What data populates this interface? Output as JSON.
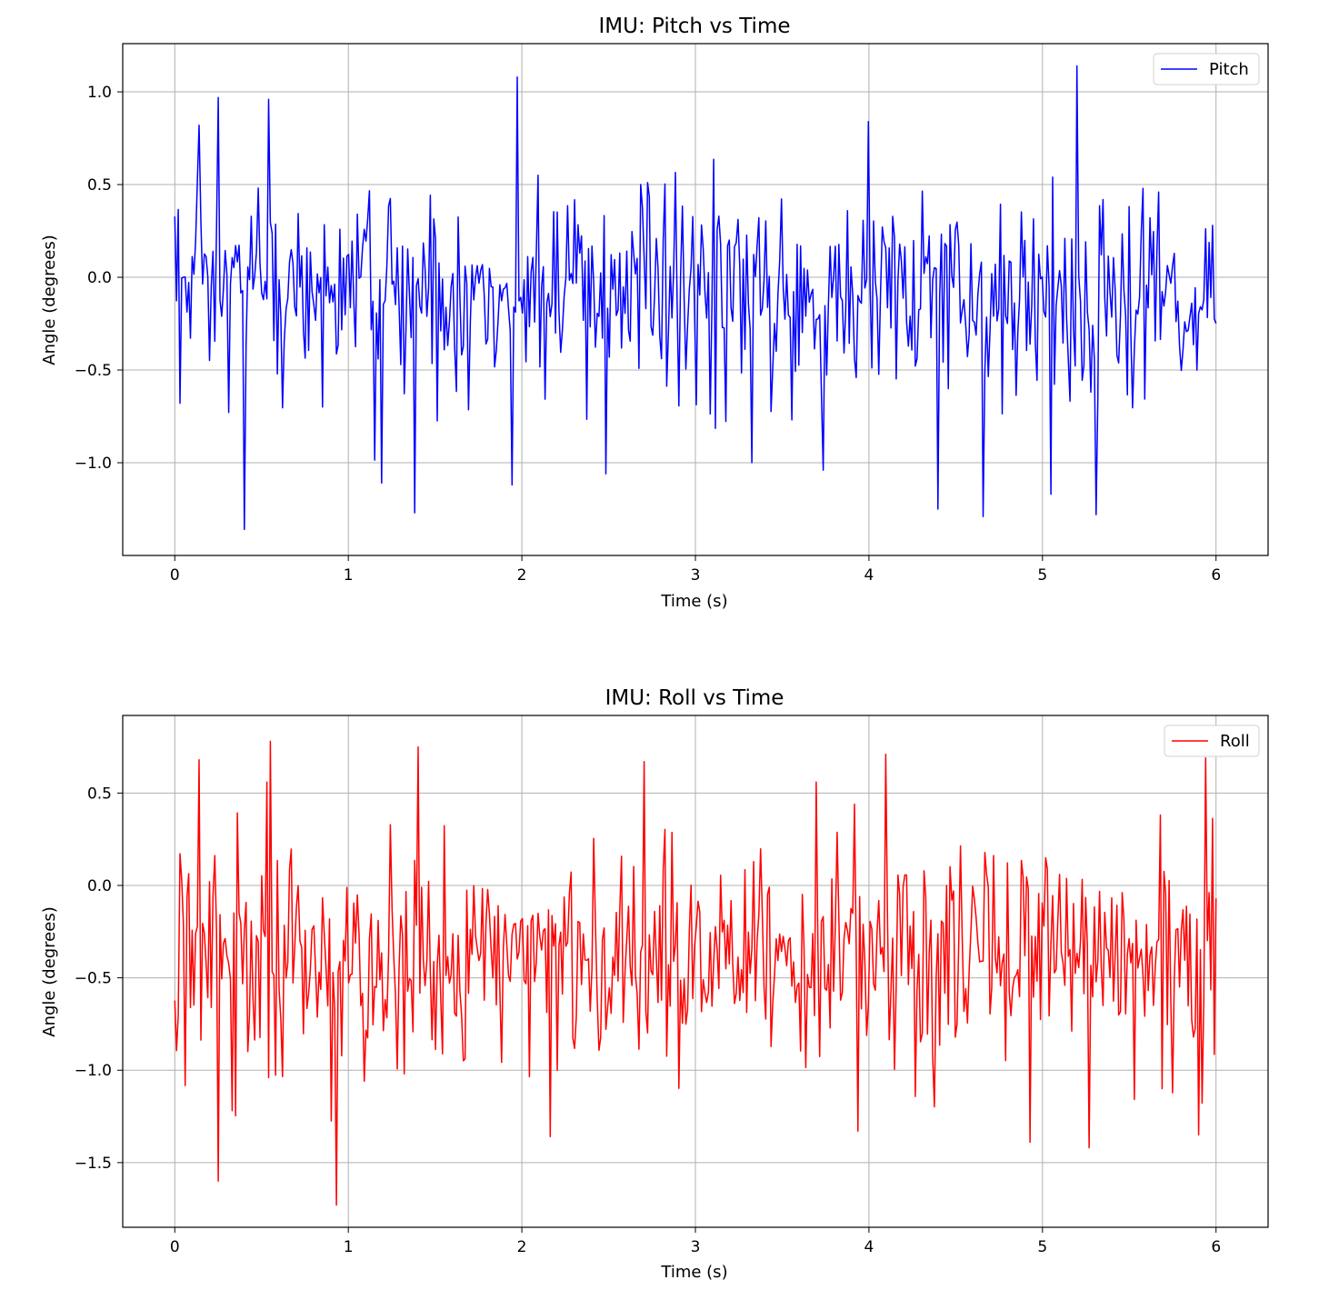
{
  "colors": {
    "pitch": "#0000ff",
    "roll": "#ff0000",
    "grid": "#b0b0b0",
    "axis": "#000000"
  },
  "chart_data": [
    {
      "type": "line",
      "title": "IMU: Pitch vs Time",
      "xlabel": "Time (s)",
      "ylabel": "Angle (degrees)",
      "xlim": [
        -0.3,
        6.3
      ],
      "ylim": [
        -1.5,
        1.26
      ],
      "xticks": [
        0,
        1,
        2,
        3,
        4,
        5,
        6
      ],
      "xtick_labels": [
        "0",
        "1",
        "2",
        "3",
        "4",
        "5",
        "6"
      ],
      "yticks": [
        1.0,
        0.5,
        0.0,
        -0.5,
        -1.0
      ],
      "ytick_labels": [
        "1.0",
        "0.5",
        "0.0",
        "−0.5",
        "−1.0"
      ],
      "grid": true,
      "legend_position": "top-right",
      "series": [
        {
          "name": "Pitch",
          "color": "#0000ff",
          "x_range": [
            0,
            6
          ],
          "sample_count": 600,
          "mean": -0.1,
          "std": 0.3,
          "notable_points": [
            {
              "x": 0.25,
              "y": 0.97
            },
            {
              "x": 0.4,
              "y": -1.36
            },
            {
              "x": 0.54,
              "y": 0.96
            },
            {
              "x": 1.19,
              "y": -1.11
            },
            {
              "x": 1.38,
              "y": -1.27
            },
            {
              "x": 1.97,
              "y": 1.08
            },
            {
              "x": 1.94,
              "y": -1.12
            },
            {
              "x": 2.48,
              "y": -1.06
            },
            {
              "x": 3.33,
              "y": -1.0
            },
            {
              "x": 3.74,
              "y": -1.04
            },
            {
              "x": 4.0,
              "y": 0.84
            },
            {
              "x": 4.4,
              "y": -1.25
            },
            {
              "x": 4.66,
              "y": -1.29
            },
            {
              "x": 5.05,
              "y": -1.17
            },
            {
              "x": 5.2,
              "y": 1.14
            },
            {
              "x": 5.31,
              "y": -1.28
            }
          ]
        }
      ]
    },
    {
      "type": "line",
      "title": "IMU: Roll vs Time",
      "xlabel": "Time (s)",
      "ylabel": "Angle (degrees)",
      "xlim": [
        -0.3,
        6.3
      ],
      "ylim": [
        -1.85,
        0.92
      ],
      "xticks": [
        0,
        1,
        2,
        3,
        4,
        5,
        6
      ],
      "xtick_labels": [
        "0",
        "1",
        "2",
        "3",
        "4",
        "5",
        "6"
      ],
      "yticks": [
        0.5,
        0.0,
        -0.5,
        -1.0,
        -1.5
      ],
      "ytick_labels": [
        "0.5",
        "0.0",
        "−0.5",
        "−1.0",
        "−1.5"
      ],
      "grid": true,
      "legend_position": "top-right",
      "series": [
        {
          "name": "Roll",
          "color": "#ff0000",
          "x_range": [
            0,
            6
          ],
          "sample_count": 600,
          "mean": -0.4,
          "std": 0.3,
          "notable_points": [
            {
              "x": 0.14,
              "y": 0.68
            },
            {
              "x": 0.25,
              "y": -1.6
            },
            {
              "x": 0.55,
              "y": 0.78
            },
            {
              "x": 0.93,
              "y": -1.73
            },
            {
              "x": 1.4,
              "y": 0.75
            },
            {
              "x": 2.16,
              "y": -1.36
            },
            {
              "x": 2.7,
              "y": 0.67
            },
            {
              "x": 3.94,
              "y": -1.33
            },
            {
              "x": 4.1,
              "y": 0.71
            },
            {
              "x": 4.93,
              "y": -1.39
            },
            {
              "x": 5.27,
              "y": -1.42
            },
            {
              "x": 5.9,
              "y": -1.35
            },
            {
              "x": 5.94,
              "y": 0.69
            }
          ]
        }
      ]
    }
  ]
}
